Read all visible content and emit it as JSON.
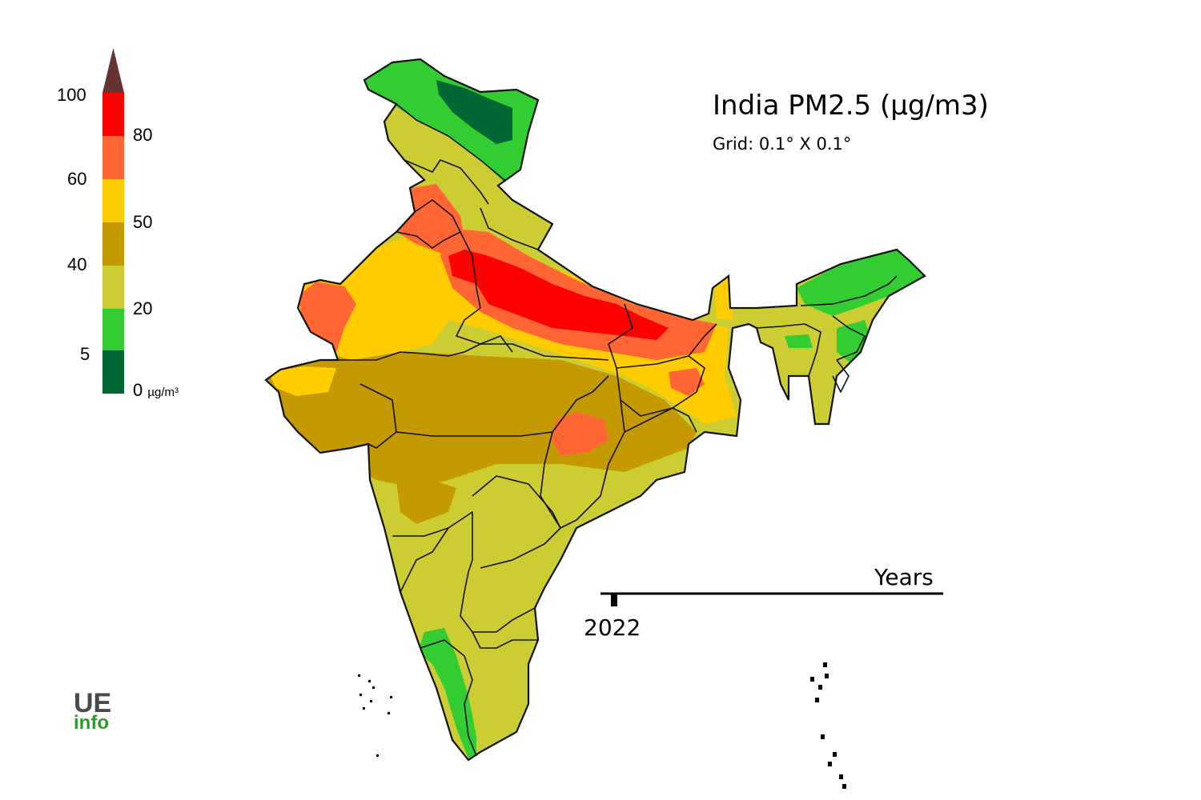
{
  "title": "India PM2.5 (µg/m3)",
  "subtitle": "Grid: 0.1° X 0.1°",
  "colors": {
    "band_0_5": "#006633",
    "band_5_20": "#33cc33",
    "band_20_40": "#cccc33",
    "band_40_50": "#c49a00",
    "band_50_60": "#ffcc00",
    "band_60_80": "#ff6633",
    "band_80_100": "#ff0000",
    "above_100": "#663333",
    "border": "#111111"
  },
  "legend": {
    "labels_left": [
      "100",
      "60",
      "40",
      "5"
    ],
    "labels_right": [
      "80",
      "50",
      "20",
      "0"
    ],
    "unit": "µg/m³"
  },
  "timeline": {
    "axis_label": "Years",
    "current_year": "2022"
  },
  "logo": {
    "line1": "UE",
    "line2": "info"
  }
}
